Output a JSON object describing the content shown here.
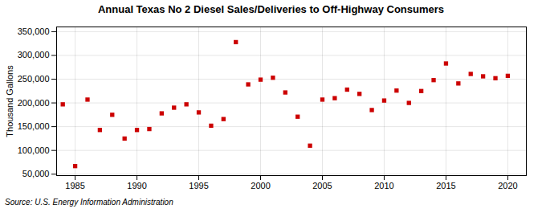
{
  "chart_data": {
    "type": "scatter",
    "title": "Annual Texas No 2 Diesel Sales/Deliveries to Off-Highway Consumers",
    "ylabel": "Thousand Gallons",
    "source": "Source: U.S. Energy Information Administration",
    "x": [
      1984,
      1985,
      1986,
      1987,
      1988,
      1989,
      1990,
      1991,
      1992,
      1993,
      1994,
      1995,
      1996,
      1997,
      1998,
      1999,
      2000,
      2001,
      2002,
      2003,
      2004,
      2005,
      2006,
      2007,
      2008,
      2009,
      2010,
      2011,
      2012,
      2013,
      2014,
      2015,
      2016,
      2017,
      2018,
      2019,
      2020
    ],
    "values": [
      197000,
      67000,
      207000,
      143000,
      175000,
      125000,
      143000,
      145000,
      178000,
      190000,
      197000,
      180000,
      152000,
      166000,
      328000,
      239000,
      249000,
      253000,
      222000,
      171000,
      110000,
      207000,
      210000,
      228000,
      219000,
      185000,
      205000,
      226000,
      200000,
      225000,
      248000,
      283000,
      241000,
      261000,
      256000,
      252000,
      257000
    ],
    "color": "#cc0000",
    "marker": "square",
    "xlim": [
      1983.5,
      2021.5
    ],
    "ylim": [
      47000,
      360000
    ],
    "xticks": [
      1985,
      1990,
      1995,
      2000,
      2005,
      2010,
      2015,
      2020
    ],
    "yticks": [
      {
        "value": 50000,
        "label": "50,000"
      },
      {
        "value": 100000,
        "label": "100,000"
      },
      {
        "value": 150000,
        "label": "150,000"
      },
      {
        "value": 200000,
        "label": "200,000"
      },
      {
        "value": 250000,
        "label": "250,000"
      },
      {
        "value": 300000,
        "label": "300,000"
      },
      {
        "value": 350000,
        "label": "350,000"
      }
    ],
    "grid": true
  }
}
